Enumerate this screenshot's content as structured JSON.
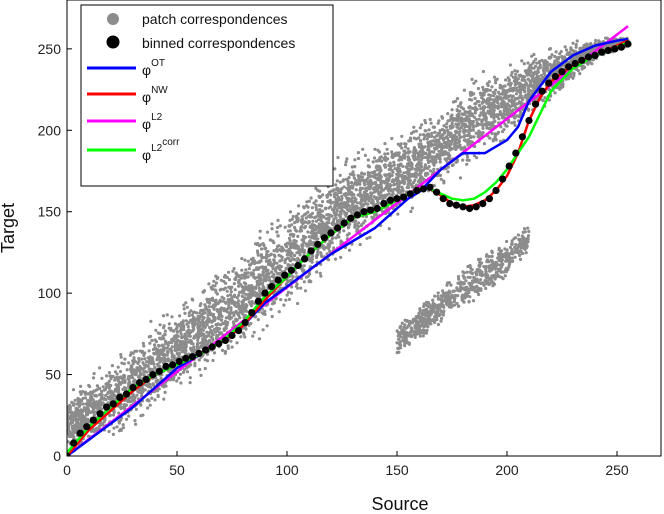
{
  "chart_data": {
    "type": "scatter",
    "xlabel": "Source",
    "ylabel": "Target",
    "xlim": [
      0,
      270
    ],
    "ylim": [
      0,
      280
    ],
    "x_ticks": [
      "0",
      "50",
      "100",
      "150",
      "200",
      "250"
    ],
    "y_ticks": [
      "0",
      "50",
      "100",
      "150",
      "200",
      "250"
    ],
    "grid": false,
    "legend_position": "top-left",
    "legend": [
      {
        "label": "patch correspondences",
        "kind": "marker",
        "color": "#8c8c8c"
      },
      {
        "label": "binned correspondences",
        "kind": "marker",
        "color": "#000000"
      },
      {
        "label": "φ",
        "sup": "OT",
        "kind": "line",
        "color": "#0000ff"
      },
      {
        "label": "φ",
        "sup": "NW",
        "kind": "line",
        "color": "#ff0000"
      },
      {
        "label": "φ",
        "sup": "L2",
        "kind": "line",
        "color": "#ff00ff"
      },
      {
        "label": "φ",
        "sup": "L2",
        "supsup": "corr",
        "kind": "line",
        "color": "#00ff00"
      }
    ],
    "band": {
      "x": [
        0,
        10,
        20,
        30,
        40,
        50,
        60,
        70,
        80,
        90,
        100,
        110,
        120,
        130,
        140,
        150,
        160,
        170,
        180,
        190,
        200,
        210,
        220,
        230,
        240,
        250,
        255
      ],
      "lower": [
        0,
        0,
        5,
        12,
        22,
        32,
        42,
        52,
        62,
        72,
        84,
        96,
        110,
        122,
        132,
        140,
        150,
        160,
        170,
        180,
        190,
        205,
        215,
        228,
        240,
        248,
        250
      ],
      "upper": [
        40,
        52,
        62,
        74,
        86,
        98,
        108,
        120,
        132,
        146,
        158,
        170,
        182,
        190,
        196,
        202,
        210,
        220,
        232,
        240,
        246,
        250,
        254,
        256,
        258,
        258,
        258
      ]
    },
    "secondary_band": {
      "x": [
        150,
        160,
        170,
        180,
        190,
        200,
        205,
        210
      ],
      "lower": [
        60,
        70,
        80,
        90,
        100,
        110,
        118,
        125
      ],
      "upper": [
        80,
        92,
        104,
        116,
        124,
        132,
        138,
        142
      ]
    },
    "binned": {
      "x": [
        0,
        3,
        6,
        9,
        12,
        15,
        18,
        21,
        24,
        27,
        30,
        33,
        36,
        39,
        42,
        45,
        48,
        51,
        54,
        57,
        60,
        63,
        66,
        69,
        72,
        75,
        78,
        81,
        84,
        87,
        90,
        93,
        96,
        99,
        102,
        105,
        108,
        111,
        114,
        117,
        120,
        123,
        126,
        129,
        132,
        135,
        138,
        141,
        144,
        147,
        150,
        153,
        156,
        159,
        162,
        165,
        168,
        171,
        174,
        177,
        180,
        183,
        186,
        189,
        192,
        195,
        198,
        201,
        204,
        207,
        210,
        213,
        216,
        219,
        222,
        225,
        228,
        231,
        234,
        237,
        240,
        243,
        246,
        249,
        252,
        255
      ],
      "y": [
        0,
        8,
        14,
        18,
        22,
        26,
        30,
        32,
        36,
        38,
        42,
        45,
        47,
        50,
        52,
        55,
        56,
        58,
        60,
        61,
        63,
        65,
        67,
        69,
        71,
        74,
        77,
        82,
        88,
        95,
        100,
        104,
        108,
        111,
        114,
        117,
        121,
        126,
        130,
        134,
        137,
        140,
        143,
        146,
        148,
        150,
        151,
        152,
        155,
        157,
        158,
        159,
        161,
        163,
        164,
        165,
        162,
        158,
        155,
        154,
        153,
        152,
        153,
        155,
        158,
        163,
        170,
        178,
        186,
        196,
        206,
        216,
        224,
        229,
        233,
        236,
        239,
        241,
        243,
        245,
        246,
        248,
        249,
        250,
        251,
        253
      ]
    },
    "series": [
      {
        "sup": "OT",
        "color": "#0000ff",
        "x": [
          0,
          10,
          20,
          30,
          40,
          50,
          60,
          70,
          80,
          90,
          100,
          110,
          120,
          130,
          140,
          150,
          155,
          160,
          170,
          180,
          185,
          190,
          195,
          200,
          205,
          210,
          220,
          230,
          240,
          250,
          255
        ],
        "y": [
          0,
          10,
          20,
          30,
          42,
          54,
          62,
          70,
          80,
          94,
          104,
          114,
          124,
          132,
          140,
          152,
          158,
          162,
          176,
          186,
          186,
          186,
          190,
          194,
          202,
          218,
          236,
          246,
          252,
          255,
          256
        ]
      },
      {
        "sup": "NW",
        "color": "#ff0000",
        "x": [
          0,
          5,
          10,
          20,
          30,
          40,
          50,
          60,
          70,
          80,
          90,
          100,
          110,
          120,
          130,
          140,
          150,
          160,
          165,
          170,
          175,
          180,
          185,
          190,
          195,
          200,
          205,
          210,
          215,
          220,
          230,
          240,
          250,
          255
        ],
        "y": [
          0,
          8,
          16,
          28,
          40,
          50,
          56,
          62,
          70,
          80,
          96,
          110,
          124,
          136,
          146,
          150,
          157,
          164,
          164,
          160,
          155,
          153,
          154,
          157,
          163,
          172,
          186,
          206,
          220,
          230,
          240,
          246,
          252,
          255
        ]
      },
      {
        "sup": "L2",
        "color": "#ff00ff",
        "x": [
          0,
          255
        ],
        "y": [
          0,
          264
        ]
      },
      {
        "sup": "L2",
        "supsup": "corr",
        "color": "#00ff00",
        "x": [
          0,
          5,
          10,
          20,
          30,
          40,
          50,
          60,
          70,
          80,
          90,
          100,
          110,
          120,
          130,
          140,
          150,
          160,
          165,
          170,
          175,
          180,
          185,
          190,
          195,
          200,
          205,
          210,
          215,
          220,
          230,
          240,
          250,
          255
        ],
        "y": [
          2,
          10,
          18,
          30,
          42,
          50,
          56,
          62,
          70,
          82,
          98,
          110,
          124,
          136,
          146,
          150,
          157,
          164,
          164,
          161,
          158,
          157,
          158,
          162,
          168,
          176,
          186,
          196,
          210,
          224,
          238,
          246,
          251,
          254
        ]
      }
    ]
  }
}
